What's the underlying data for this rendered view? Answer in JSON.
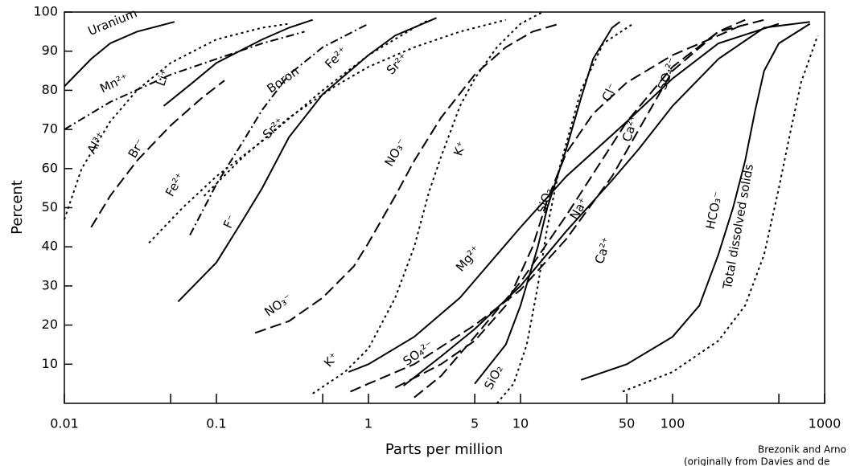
{
  "chart_data": {
    "type": "line",
    "xlabel": "Parts per million",
    "ylabel": "Percent",
    "source": [
      "Brezonik and Arno",
      "(originally from Davies and de"
    ],
    "xscale": "log",
    "xlim": [
      0.01,
      1000
    ],
    "ylim": [
      0,
      100
    ],
    "xticks": [
      0.01,
      0.1,
      1,
      5,
      10,
      50,
      100,
      1000
    ],
    "xminorticks": [
      0.05,
      0.5,
      500
    ],
    "yticks": [
      10,
      20,
      30,
      40,
      50,
      60,
      70,
      80,
      90,
      100
    ],
    "color": "#000000",
    "series": [
      {
        "name": "Uranium",
        "dash": "solid",
        "x": [
          0.01,
          0.015,
          0.02,
          0.03,
          0.053
        ],
        "values": [
          81,
          88,
          92,
          95,
          97.5
        ]
      },
      {
        "name": "Mn²⁺",
        "dash": "dashdot",
        "x": [
          0.01,
          0.02,
          0.05,
          0.1,
          0.2,
          0.38
        ],
        "values": [
          70,
          77,
          84,
          88,
          92,
          95
        ]
      },
      {
        "name": "Al³⁺",
        "dash": "dotted",
        "x": [
          0.01,
          0.013,
          0.02,
          0.03,
          0.05,
          0.1,
          0.2,
          0.3
        ],
        "values": [
          47,
          60,
          72,
          80,
          87,
          93,
          96,
          97
        ]
      },
      {
        "name": "Li⁺",
        "dash": "solid",
        "x": [
          0.045,
          0.07,
          0.1,
          0.2,
          0.3,
          0.43
        ],
        "values": [
          76,
          82,
          87,
          93,
          96,
          98
        ]
      },
      {
        "name": "Br⁻",
        "dash": "dashed",
        "x": [
          0.015,
          0.02,
          0.03,
          0.05,
          0.08,
          0.113
        ],
        "values": [
          45,
          53,
          62,
          71,
          78,
          82.5
        ]
      },
      {
        "name": "Fe²⁺",
        "dash": "dotted",
        "x": [
          0.036,
          0.06,
          0.1,
          0.2,
          0.5,
          1,
          2,
          2.5
        ],
        "values": [
          41,
          50,
          58,
          67,
          80,
          89,
          96,
          98
        ]
      },
      {
        "name": "Boron",
        "dash": "dashdot",
        "x": [
          0.067,
          0.1,
          0.15,
          0.2,
          0.3,
          0.5,
          1
        ],
        "values": [
          43,
          56,
          67,
          75,
          84,
          91,
          97
        ]
      },
      {
        "name": "Sr²⁺",
        "dash": "dotted",
        "x": [
          0.083,
          0.15,
          0.3,
          0.6,
          1,
          2,
          4,
          8
        ],
        "values": [
          53,
          63,
          73,
          81,
          86,
          91,
          95,
          98
        ]
      },
      {
        "name": "F⁻",
        "dash": "solid",
        "x": [
          0.056,
          0.1,
          0.15,
          0.2,
          0.3,
          0.5,
          1,
          1.5,
          2.8
        ],
        "values": [
          26,
          36,
          47,
          55,
          68,
          79,
          89,
          94,
          98.5
        ]
      },
      {
        "name": "NO₃⁻",
        "dash": "dashed",
        "x": [
          0.18,
          0.3,
          0.5,
          0.8,
          1,
          1.5,
          2,
          3,
          5,
          8,
          12,
          18
        ],
        "values": [
          18,
          21,
          27,
          35,
          41,
          53,
          62,
          73,
          84,
          91,
          95,
          97
        ]
      },
      {
        "name": "K⁺",
        "dash": "dotted",
        "x": [
          0.43,
          0.7,
          1,
          1.5,
          2,
          2.5,
          3,
          4,
          5,
          7,
          10,
          14
        ],
        "values": [
          2.5,
          8,
          14,
          27,
          40,
          54,
          63,
          76,
          83,
          91,
          97,
          100
        ]
      },
      {
        "name": "Mg²⁺",
        "dash": "solid",
        "x": [
          0.74,
          1,
          2,
          4,
          6,
          10,
          20,
          50,
          100,
          200,
          500
        ],
        "values": [
          8,
          10,
          17,
          27,
          35,
          45,
          58,
          72,
          83,
          92,
          97
        ]
      },
      {
        "name": "Na⁺",
        "dash": "solid",
        "x": [
          1.7,
          3,
          5,
          10,
          20,
          40,
          60,
          100,
          200,
          400,
          800
        ],
        "values": [
          4.5,
          12,
          19,
          30,
          44,
          57,
          65,
          76,
          88,
          96,
          97.5
        ]
      },
      {
        "name": "SO₄²⁻",
        "dash": "dashed",
        "x": [
          0.76,
          1,
          2,
          5,
          10,
          20,
          40,
          60,
          100,
          200,
          300
        ],
        "values": [
          3,
          5,
          10,
          20,
          29,
          42,
          58,
          70,
          85,
          95,
          98
        ]
      },
      {
        "name": "Ca²⁺",
        "dash": "dashed",
        "x": [
          2,
          3,
          5,
          10,
          20,
          50,
          100,
          200,
          400
        ],
        "values": [
          1.5,
          7,
          17,
          31,
          48,
          72,
          86,
          95,
          98
        ]
      },
      {
        "name": "Cl⁻",
        "dash": "dashed",
        "x": [
          1.5,
          3,
          5,
          8,
          12,
          15,
          20,
          30,
          50,
          100,
          200,
          300
        ],
        "values": [
          4,
          10,
          16,
          25,
          40,
          52,
          64,
          74,
          82,
          89,
          94,
          97
        ]
      },
      {
        "name": "SiO₂",
        "dash": "solid",
        "x": [
          5,
          8,
          10,
          13,
          15,
          20,
          25,
          30,
          40,
          45
        ],
        "values": [
          5,
          15,
          25,
          40,
          50,
          65,
          78,
          88,
          96,
          97.5
        ]
      },
      {
        "name": "SiO₂",
        "dash": "dotted",
        "x": [
          7,
          9,
          11,
          13,
          15,
          18,
          25,
          35,
          55
        ],
        "values": [
          0,
          5,
          15,
          30,
          45,
          60,
          80,
          92,
          97
        ]
      },
      {
        "name": "HCO₃⁻",
        "dash": "solid",
        "x": [
          25,
          50,
          100,
          150,
          200,
          250,
          300,
          350,
          400,
          500,
          800
        ],
        "values": [
          6,
          10,
          17,
          25,
          38,
          50,
          62,
          75,
          85,
          92,
          97
        ]
      },
      {
        "name": "Total dissolved solids",
        "dash": "dotted",
        "x": [
          47,
          100,
          200,
          300,
          400,
          500,
          600,
          700,
          900
        ],
        "values": [
          3,
          8,
          16,
          25,
          38,
          55,
          70,
          82,
          94
        ]
      }
    ]
  }
}
